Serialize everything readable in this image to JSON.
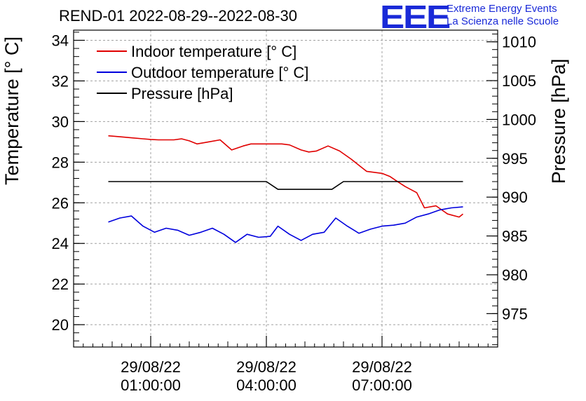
{
  "header": {
    "title": "REND-01 2022-08-29--2022-08-30",
    "logo_text": "EEE",
    "org_line1": "Extreme Energy Events",
    "org_line2": "La Scienza nelle Scuole"
  },
  "chart_data": {
    "type": "line",
    "title": "REND-01 2022-08-29--2022-08-30",
    "xlabel": "",
    "ylabel": "Temperature [° C]",
    "y2label": "Pressure [hPa]",
    "xlim_hours": [
      -1.0,
      10.0
    ],
    "ylim": [
      18.9,
      34.5
    ],
    "y2lim": [
      970.7,
      1011.5
    ],
    "y_ticks": [
      20,
      22,
      24,
      26,
      28,
      30,
      32,
      34
    ],
    "y2_ticks": [
      975,
      980,
      985,
      990,
      995,
      1000,
      1005,
      1010
    ],
    "x_ticks": [
      {
        "hour": 1,
        "line1": "29/08/22",
        "line2": "01:00:00"
      },
      {
        "hour": 4,
        "line1": "29/08/22",
        "line2": "04:00:00"
      },
      {
        "hour": 7,
        "line1": "29/08/22",
        "line2": "07:00:00"
      }
    ],
    "grid": true,
    "legend_position": "top-left",
    "series": [
      {
        "name": "Indoor temperature [° C]",
        "color": "#e00000",
        "axis": "left",
        "x": [
          -0.1,
          0.2,
          0.5,
          0.8,
          1.0,
          1.2,
          1.6,
          1.8,
          2.0,
          2.2,
          2.5,
          2.8,
          3.1,
          3.4,
          3.6,
          3.8,
          4.2,
          4.4,
          4.6,
          4.9,
          5.1,
          5.3,
          5.6,
          5.9,
          6.2,
          6.4,
          6.6,
          7.0,
          7.2,
          7.4,
          7.6,
          7.9,
          8.1,
          8.4,
          8.7,
          9.0,
          9.1
        ],
        "y": [
          29.3,
          29.25,
          29.2,
          29.15,
          29.12,
          29.1,
          29.1,
          29.15,
          29.05,
          28.9,
          29.0,
          29.1,
          28.6,
          28.8,
          28.9,
          28.9,
          28.9,
          28.9,
          28.85,
          28.6,
          28.5,
          28.55,
          28.8,
          28.55,
          28.15,
          27.85,
          27.55,
          27.45,
          27.3,
          27.05,
          26.8,
          26.5,
          25.75,
          25.85,
          25.45,
          25.3,
          25.45
        ]
      },
      {
        "name": "Outdoor temperature [° C]",
        "color": "#0000dd",
        "axis": "left",
        "x": [
          -0.1,
          0.2,
          0.5,
          0.8,
          1.1,
          1.4,
          1.7,
          2.0,
          2.3,
          2.6,
          2.9,
          3.2,
          3.5,
          3.8,
          4.1,
          4.3,
          4.6,
          4.9,
          5.2,
          5.5,
          5.8,
          6.1,
          6.4,
          6.7,
          7.0,
          7.3,
          7.6,
          7.9,
          8.2,
          8.5,
          8.8,
          9.1
        ],
        "y": [
          25.05,
          25.25,
          25.35,
          24.85,
          24.55,
          24.75,
          24.65,
          24.4,
          24.55,
          24.75,
          24.45,
          24.05,
          24.45,
          24.3,
          24.35,
          24.85,
          24.45,
          24.15,
          24.45,
          24.55,
          25.25,
          24.85,
          24.5,
          24.7,
          24.85,
          24.9,
          25.0,
          25.3,
          25.45,
          25.65,
          25.75,
          25.8
        ]
      },
      {
        "name": "Pressure [hPa]",
        "color": "#000000",
        "axis": "right",
        "x": [
          -0.1,
          4.0,
          4.3,
          5.7,
          6.0,
          9.1
        ],
        "y": [
          992,
          992,
          991,
          991,
          992,
          992
        ]
      }
    ]
  }
}
